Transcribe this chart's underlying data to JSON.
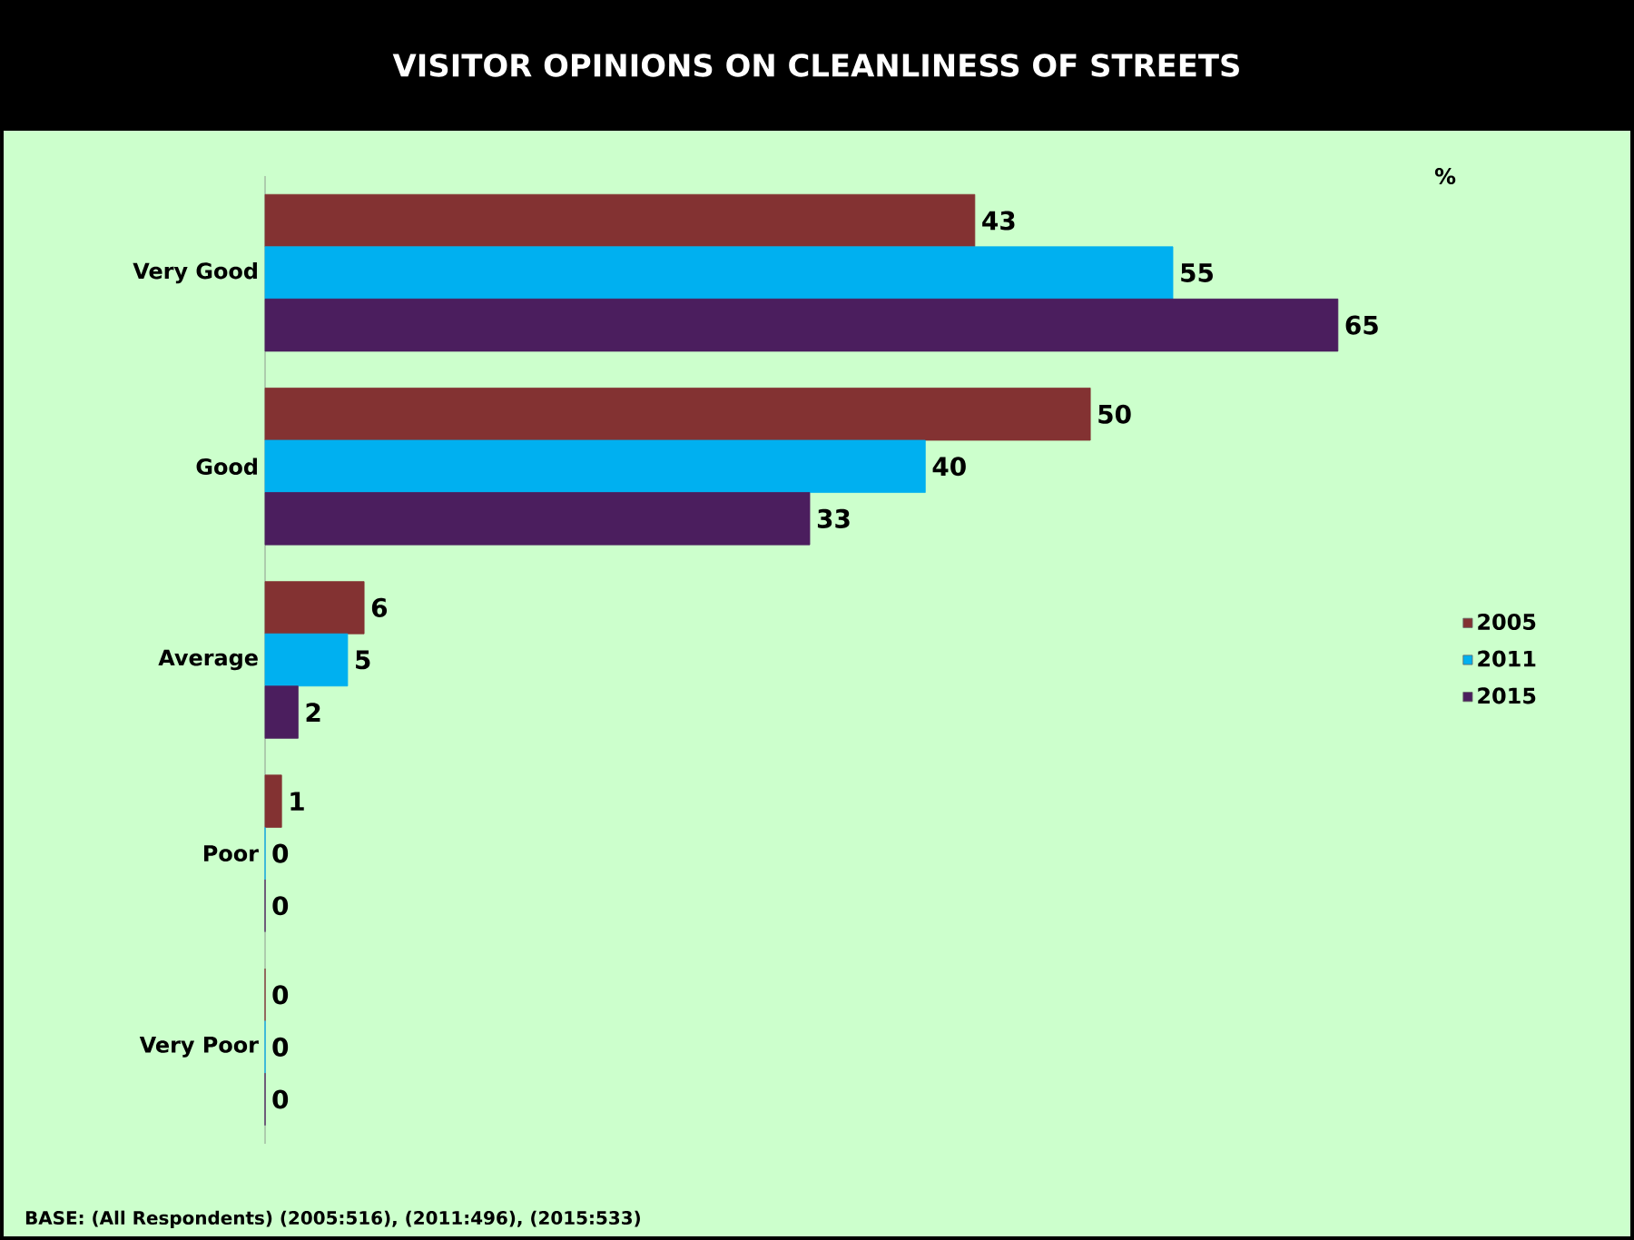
{
  "chart_data": {
    "type": "bar",
    "orientation": "horizontal",
    "title": "VISITOR OPINIONS ON CLEANLINESS OF STREETS",
    "xlabel": "%",
    "categories": [
      "Very Good",
      "Good",
      "Average",
      "Poor",
      "Very Poor"
    ],
    "series": [
      {
        "name": "2005",
        "color": "#833232",
        "values": [
          43,
          50,
          6,
          1,
          0
        ]
      },
      {
        "name": "2011",
        "color": "#00b0f0",
        "values": [
          55,
          40,
          5,
          0,
          0
        ]
      },
      {
        "name": "2015",
        "color": "#4b1e5e",
        "values": [
          65,
          33,
          2,
          0,
          0
        ]
      }
    ],
    "data_labels": true,
    "legend": "right",
    "annotations": [
      "BASE: (All Respondents) (2005:516), (2011:496), (2015:533)"
    ]
  }
}
